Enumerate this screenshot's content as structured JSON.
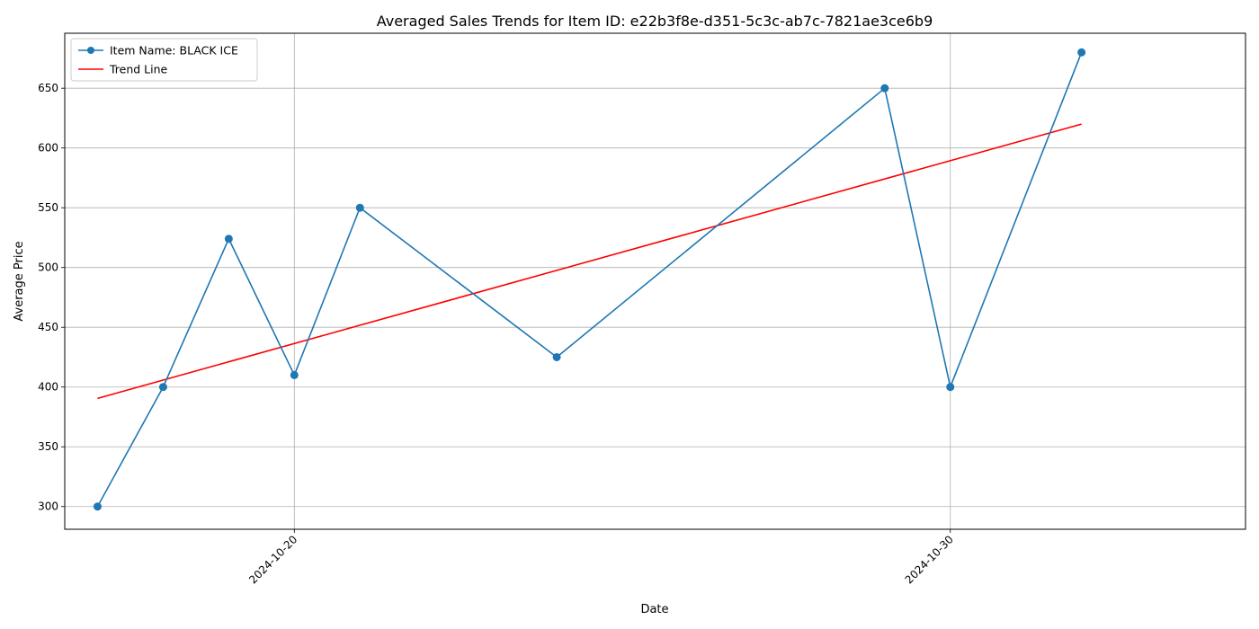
{
  "chart_data": {
    "type": "line",
    "title": "Averaged Sales Trends for Item ID: e22b3f8e-d351-5c3c-ab7c-7821ae3ce6b9",
    "xlabel": "Date",
    "ylabel": "Average Price",
    "x_axis_type": "date",
    "xlim": [
      "2024-10-16T12:00",
      "2024-11-03T12:00"
    ],
    "ylim": [
      281,
      696
    ],
    "x_ticks": [
      "2024-10-20",
      "2024-10-30"
    ],
    "x_tick_rotation_deg": 45,
    "y_ticks": [
      300,
      350,
      400,
      450,
      500,
      550,
      600,
      650
    ],
    "grid": true,
    "legend_position": "top-left",
    "series": [
      {
        "name": "Item Name: BLACK ICE",
        "style": "line-with-markers",
        "color": "#1f77b4",
        "x": [
          "2024-10-17",
          "2024-10-18",
          "2024-10-19",
          "2024-10-20",
          "2024-10-21",
          "2024-10-24",
          "2024-10-29",
          "2024-10-30",
          "2024-11-01"
        ],
        "y": [
          300,
          400,
          524,
          410,
          550,
          425,
          650,
          400,
          680
        ]
      },
      {
        "name": "Trend Line",
        "style": "line",
        "color": "#ff0000",
        "x": [
          "2024-10-17",
          "2024-11-01"
        ],
        "y": [
          390.5,
          620
        ]
      }
    ]
  }
}
